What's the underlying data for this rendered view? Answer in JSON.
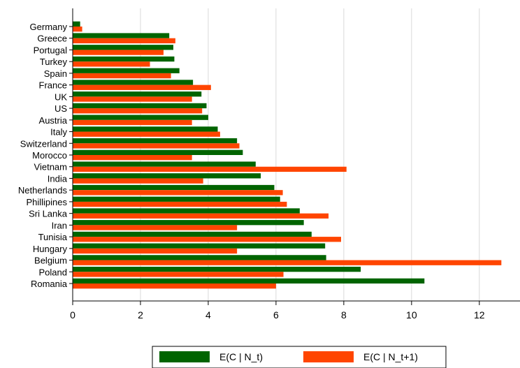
{
  "chart_data": {
    "type": "bar",
    "orientation": "horizontal",
    "categories": [
      "Germany",
      "Greece",
      "Portugal",
      "Turkey",
      "Spain",
      "France",
      "UK",
      "US",
      "Austria",
      "Italy",
      "Switzerland",
      "Morocco",
      "Vietnam",
      "India",
      "Netherlands",
      "Phillipines",
      "Sri Lanka",
      "Iran",
      "Tunisia",
      "Hungary",
      "Belgium",
      "Poland",
      "Romania"
    ],
    "series": [
      {
        "name": "E(C | N_t)",
        "color": "#006400",
        "values": [
          0.22,
          2.85,
          2.97,
          3.0,
          3.15,
          3.55,
          3.8,
          3.95,
          4.0,
          4.28,
          4.85,
          5.02,
          5.4,
          5.55,
          5.95,
          6.12,
          6.7,
          6.82,
          7.05,
          7.45,
          7.48,
          8.5,
          10.38
        ]
      },
      {
        "name": "E(C | N_t+1)",
        "color": "#FF4500",
        "values": [
          0.28,
          3.03,
          2.68,
          2.28,
          2.9,
          4.08,
          3.52,
          3.82,
          3.52,
          4.35,
          4.92,
          3.52,
          8.08,
          3.85,
          6.2,
          6.32,
          7.55,
          4.85,
          7.92,
          4.85,
          12.65,
          6.22,
          6.0
        ]
      }
    ],
    "xticks": [
      "0",
      "2",
      "4",
      "6",
      "8",
      "10",
      "12"
    ],
    "xlim": [
      0,
      13.2
    ],
    "grid": true,
    "legend_position": "bottom"
  }
}
